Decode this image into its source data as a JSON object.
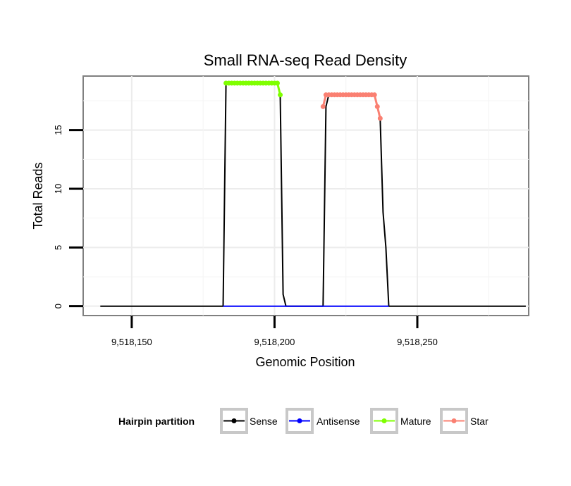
{
  "chart_data": {
    "type": "line",
    "title": "Small RNA-seq Read Density",
    "xlabel": "Genomic Position",
    "ylabel": "Total Reads",
    "xlim": [
      9518133,
      9518289
    ],
    "ylim": [
      -0.8,
      19.6
    ],
    "x_ticks": [
      9518150,
      9518200,
      9518250
    ],
    "x_tick_labels": [
      "9,518,150",
      "9,518,200",
      "9,518,250"
    ],
    "y_ticks": [
      0,
      5,
      10,
      15
    ],
    "y_tick_labels": [
      "0",
      "5",
      "10",
      "15"
    ],
    "grid": true,
    "legend": {
      "title": "Hairpin partition",
      "position": "bottom",
      "entries": [
        {
          "label": "Sense",
          "color": "#000000"
        },
        {
          "label": "Antisense",
          "color": "#0000ff"
        },
        {
          "label": "Mature",
          "color": "#7fff00"
        },
        {
          "label": "Star",
          "color": "#fa8072"
        }
      ]
    },
    "series": [
      {
        "name": "Sense",
        "color": "#000000",
        "x": [
          9518139,
          9518182,
          9518183,
          9518201,
          9518202,
          9518203,
          9518204,
          9518217,
          9518218,
          9518219,
          9518235,
          9518236,
          9518237,
          9518238,
          9518239,
          9518240,
          9518288
        ],
        "y": [
          0,
          0,
          19,
          19,
          18,
          1,
          0,
          0,
          17,
          18,
          18,
          17,
          16,
          8,
          5,
          0,
          0
        ]
      },
      {
        "name": "Antisense",
        "color": "#0000ff",
        "x": [
          9518182,
          9518240
        ],
        "y": [
          0,
          0
        ]
      },
      {
        "name": "Mature",
        "color": "#7fff00",
        "x": [
          9518183,
          9518184,
          9518185,
          9518186,
          9518187,
          9518188,
          9518189,
          9518190,
          9518191,
          9518192,
          9518193,
          9518194,
          9518195,
          9518196,
          9518197,
          9518198,
          9518199,
          9518200,
          9518201,
          9518202
        ],
        "y": [
          19,
          19,
          19,
          19,
          19,
          19,
          19,
          19,
          19,
          19,
          19,
          19,
          19,
          19,
          19,
          19,
          19,
          19,
          19,
          18
        ]
      },
      {
        "name": "Star",
        "color": "#fa8072",
        "x": [
          9518217,
          9518218,
          9518219,
          9518220,
          9518221,
          9518222,
          9518223,
          9518224,
          9518225,
          9518226,
          9518227,
          9518228,
          9518229,
          9518230,
          9518231,
          9518232,
          9518233,
          9518234,
          9518235,
          9518236,
          9518237
        ],
        "y": [
          17,
          18,
          18,
          18,
          18,
          18,
          18,
          18,
          18,
          18,
          18,
          18,
          18,
          18,
          18,
          18,
          18,
          18,
          18,
          17,
          16
        ]
      }
    ]
  }
}
